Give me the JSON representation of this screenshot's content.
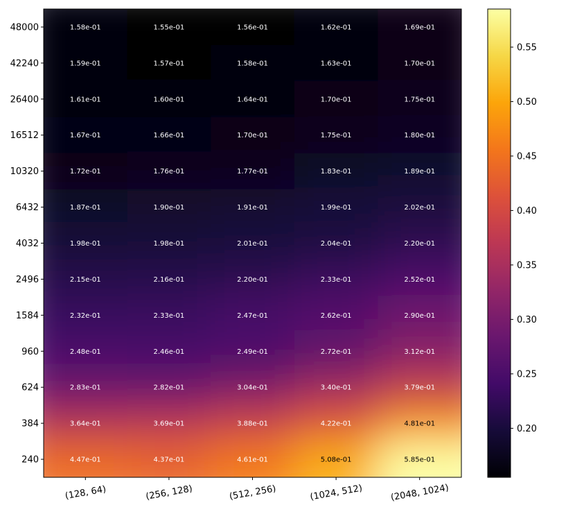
{
  "chart_data": {
    "type": "heatmap",
    "colormap": "inferno",
    "interpolation": "smooth",
    "x_categories": [
      "(128, 64)",
      "(256, 128)",
      "(512, 256)",
      "(1024, 512)",
      "(2048, 1024)"
    ],
    "y_categories": [
      "48000",
      "42240",
      "26400",
      "16512",
      "10320",
      "6432",
      "4032",
      "2496",
      "1584",
      "960",
      "624",
      "384",
      "240"
    ],
    "values": [
      [
        0.158,
        0.155,
        0.156,
        0.162,
        0.169
      ],
      [
        0.159,
        0.157,
        0.158,
        0.163,
        0.17
      ],
      [
        0.161,
        0.16,
        0.164,
        0.17,
        0.175
      ],
      [
        0.167,
        0.166,
        0.17,
        0.175,
        0.18
      ],
      [
        0.172,
        0.176,
        0.177,
        0.183,
        0.189
      ],
      [
        0.187,
        0.19,
        0.191,
        0.199,
        0.202
      ],
      [
        0.198,
        0.198,
        0.201,
        0.204,
        0.22
      ],
      [
        0.215,
        0.216,
        0.22,
        0.233,
        0.252
      ],
      [
        0.232,
        0.233,
        0.247,
        0.262,
        0.29
      ],
      [
        0.248,
        0.246,
        0.249,
        0.272,
        0.312
      ],
      [
        0.283,
        0.282,
        0.304,
        0.34,
        0.379
      ],
      [
        0.364,
        0.369,
        0.388,
        0.422,
        0.481
      ],
      [
        0.447,
        0.437,
        0.461,
        0.508,
        0.585
      ]
    ],
    "labels": [
      [
        "1.58e-01",
        "1.55e-01",
        "1.56e-01",
        "1.62e-01",
        "1.69e-01"
      ],
      [
        "1.59e-01",
        "1.57e-01",
        "1.58e-01",
        "1.63e-01",
        "1.70e-01"
      ],
      [
        "1.61e-01",
        "1.60e-01",
        "1.64e-01",
        "1.70e-01",
        "1.75e-01"
      ],
      [
        "1.67e-01",
        "1.66e-01",
        "1.70e-01",
        "1.75e-01",
        "1.80e-01"
      ],
      [
        "1.72e-01",
        "1.76e-01",
        "1.77e-01",
        "1.83e-01",
        "1.89e-01"
      ],
      [
        "1.87e-01",
        "1.90e-01",
        "1.91e-01",
        "1.99e-01",
        "2.02e-01"
      ],
      [
        "1.98e-01",
        "1.98e-01",
        "2.01e-01",
        "2.04e-01",
        "2.20e-01"
      ],
      [
        "2.15e-01",
        "2.16e-01",
        "2.20e-01",
        "2.33e-01",
        "2.52e-01"
      ],
      [
        "2.32e-01",
        "2.33e-01",
        "2.47e-01",
        "2.62e-01",
        "2.90e-01"
      ],
      [
        "2.48e-01",
        "2.46e-01",
        "2.49e-01",
        "2.72e-01",
        "3.12e-01"
      ],
      [
        "2.83e-01",
        "2.82e-01",
        "3.04e-01",
        "3.40e-01",
        "3.79e-01"
      ],
      [
        "3.64e-01",
        "3.69e-01",
        "3.88e-01",
        "4.22e-01",
        "4.81e-01"
      ],
      [
        "4.47e-01",
        "4.37e-01",
        "4.61e-01",
        "5.08e-01",
        "5.85e-01"
      ]
    ],
    "colorbar": {
      "range": [
        0.155,
        0.585
      ],
      "ticks": [
        0.2,
        0.25,
        0.3,
        0.35,
        0.4,
        0.45,
        0.5,
        0.55
      ],
      "tick_labels": [
        "0.20",
        "0.25",
        "0.30",
        "0.35",
        "0.40",
        "0.45",
        "0.50",
        "0.55"
      ],
      "placement": "right"
    },
    "title": "",
    "xlabel": "",
    "ylabel": "",
    "grid": false,
    "x_tick_rotation_deg": 10
  }
}
